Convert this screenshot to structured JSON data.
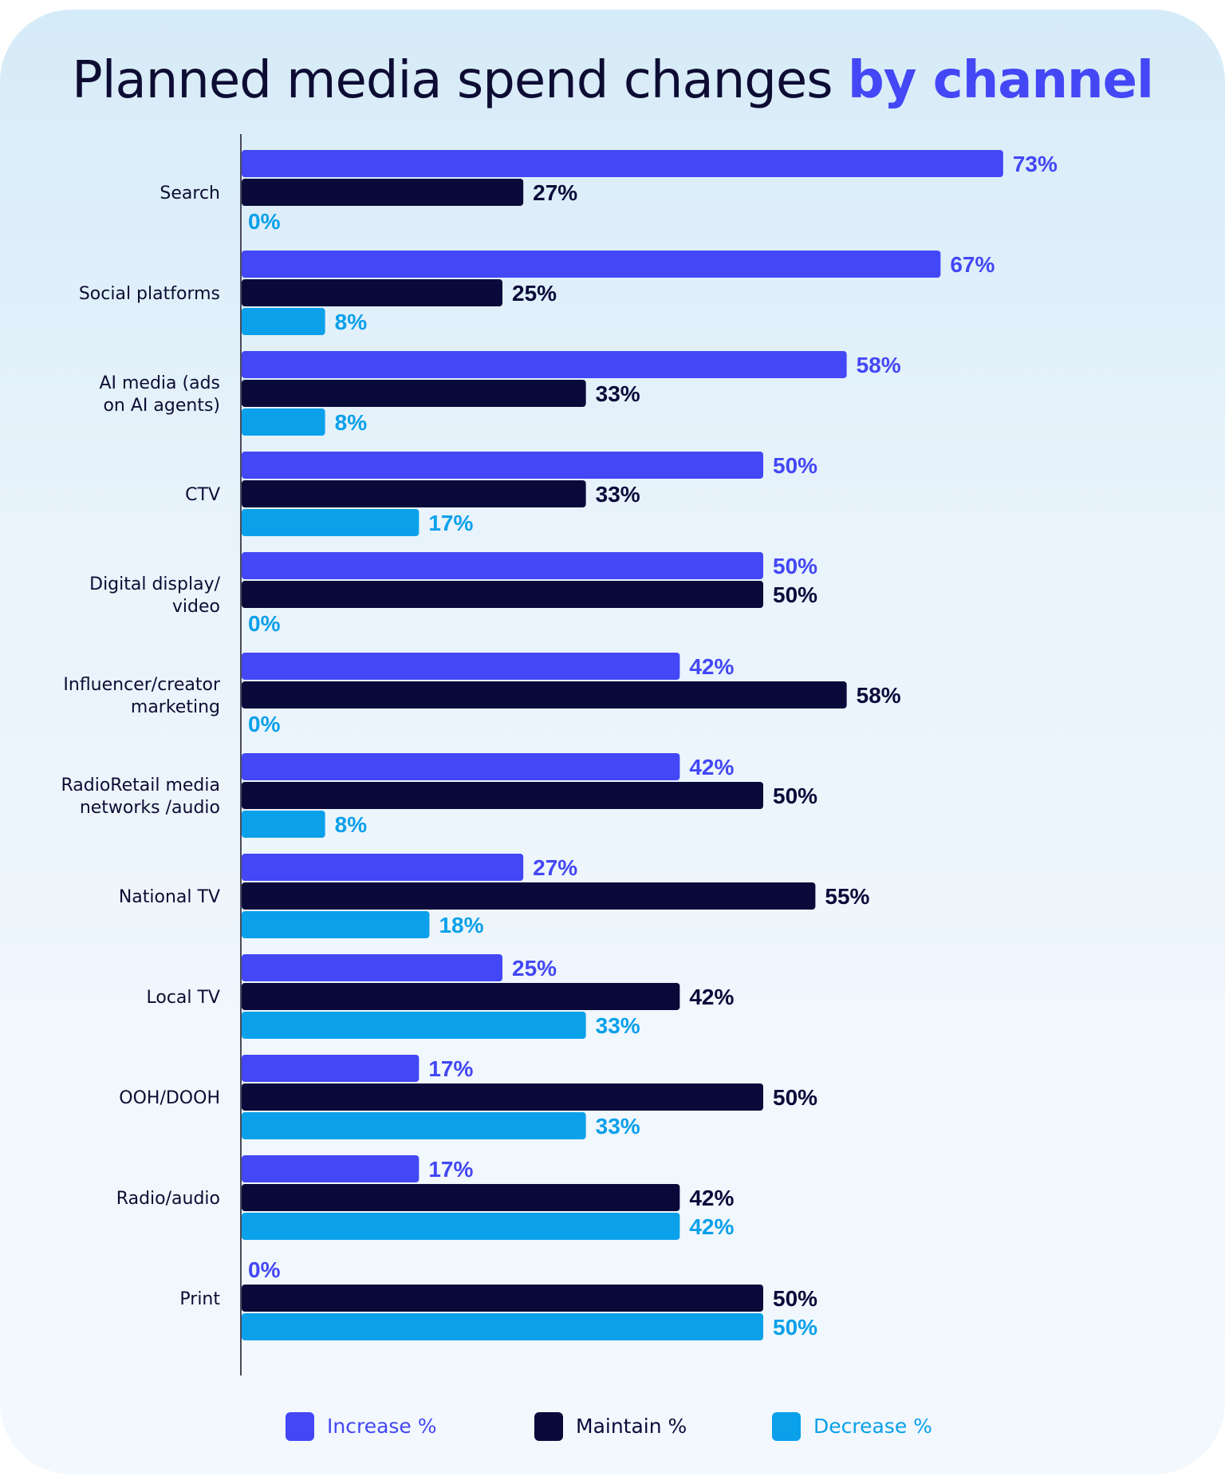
{
  "chart_data": {
    "type": "bar",
    "orientation": "horizontal",
    "title_plain": "Planned media spend changes ",
    "title_emphasis": "by channel",
    "categories": [
      "Search",
      "Social platforms",
      "AI media (ads|on AI agents)",
      "CTV",
      "Digital display/|video",
      "Influencer/creator|marketing",
      "RadioRetail media|networks /audio",
      "National TV",
      "Local TV",
      "OOH/DOOH",
      "Radio/audio",
      "Print"
    ],
    "series": [
      {
        "name": "Increase %",
        "color": "#4347f5",
        "values": [
          73,
          67,
          58,
          50,
          50,
          42,
          42,
          27,
          25,
          17,
          17,
          0
        ]
      },
      {
        "name": "Maintain %",
        "color": "#0a0a3a",
        "values": [
          27,
          25,
          33,
          33,
          50,
          58,
          50,
          55,
          42,
          50,
          42,
          50
        ]
      },
      {
        "name": "Decrease %",
        "color": "#0aa0ea",
        "values": [
          0,
          8,
          8,
          17,
          0,
          0,
          8,
          18,
          33,
          33,
          42,
          50
        ]
      }
    ],
    "value_suffix": "%",
    "xlim": [
      0,
      100
    ],
    "grid": false,
    "legend_position": "bottom"
  }
}
